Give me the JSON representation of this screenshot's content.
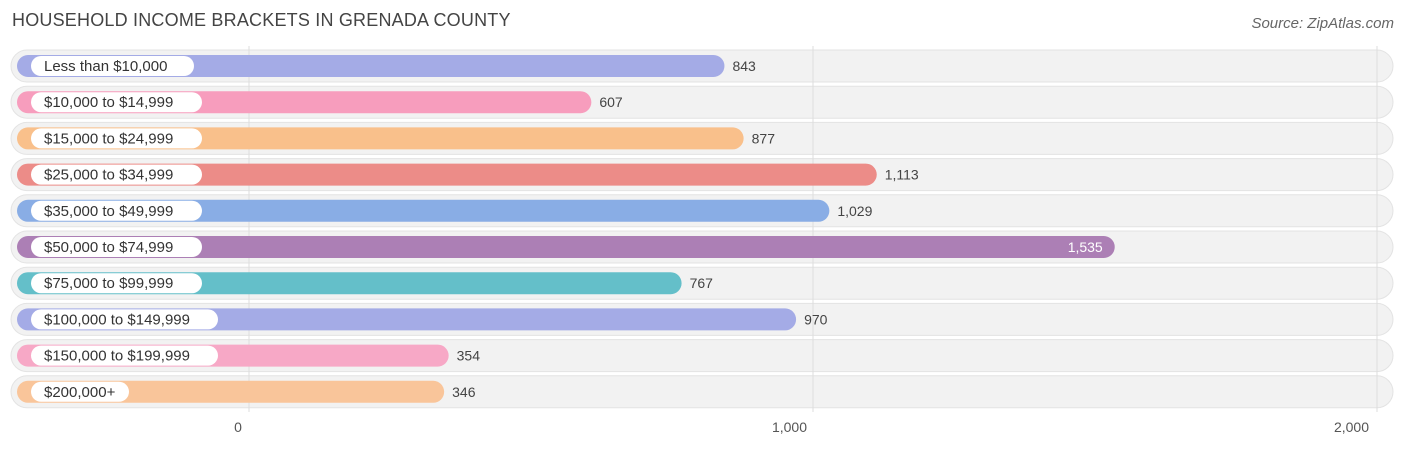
{
  "header": {
    "title": "HOUSEHOLD INCOME BRACKETS IN GRENADA COUNTY",
    "source": "Source: ZipAtlas.com"
  },
  "chart_data": {
    "type": "bar",
    "orientation": "horizontal",
    "title": "HOUSEHOLD INCOME BRACKETS IN GRENADA COUNTY",
    "categories": [
      "Less than $10,000",
      "$10,000 to $14,999",
      "$15,000 to $24,999",
      "$25,000 to $34,999",
      "$35,000 to $49,999",
      "$50,000 to $74,999",
      "$75,000 to $99,999",
      "$100,000 to $149,999",
      "$150,000 to $199,999",
      "$200,000+"
    ],
    "values": [
      843,
      607,
      877,
      1113,
      1029,
      1535,
      767,
      970,
      354,
      346
    ],
    "value_labels": [
      "843",
      "607",
      "877",
      "1,113",
      "1,029",
      "1,535",
      "767",
      "970",
      "354",
      "346"
    ],
    "colors": [
      "#a4abe6",
      "#f79dbd",
      "#f9c08b",
      "#ec8c88",
      "#89ade5",
      "#ac7fb5",
      "#64bfc9",
      "#a4abe6",
      "#f7a8c6",
      "#f9c59a"
    ],
    "xlim": [
      0,
      2000
    ],
    "xticks": [
      0,
      1000,
      2000
    ],
    "xtick_labels": [
      "0",
      "1,000",
      "2,000"
    ],
    "grid": true,
    "xlabel": "",
    "ylabel": ""
  }
}
